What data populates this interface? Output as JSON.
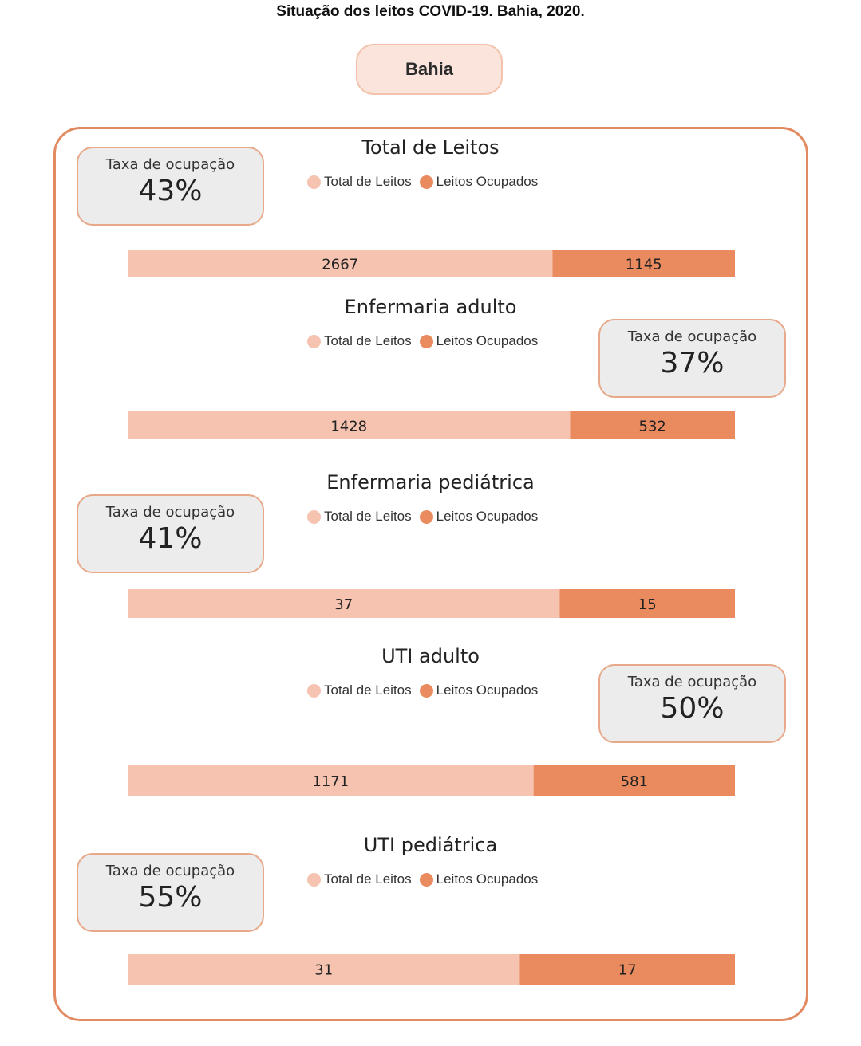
{
  "title": "Situação dos leitos COVID-19. Bahia, 2020.",
  "region_button": "Bahia",
  "colors": {
    "total": "#f5c3b0",
    "occupied": "#e98b5f",
    "accent": "#e28b62",
    "card_bg": "#ececec"
  },
  "legend": {
    "total_label": "Total de Leitos",
    "occupied_label": "Leitos Ocupados"
  },
  "rate_label": "Taxa de ocupação",
  "chart_data": [
    {
      "type": "bar",
      "title": "Total de Leitos",
      "orientation": "horizontal-stacked",
      "series": [
        {
          "name": "Total de Leitos",
          "values": [
            2667
          ]
        },
        {
          "name": "Leitos Ocupados",
          "values": [
            1145
          ]
        }
      ],
      "occupancy_rate": "43%",
      "card_side": "left"
    },
    {
      "type": "bar",
      "title": "Enfermaria adulto",
      "orientation": "horizontal-stacked",
      "series": [
        {
          "name": "Total de Leitos",
          "values": [
            1428
          ]
        },
        {
          "name": "Leitos Ocupados",
          "values": [
            532
          ]
        }
      ],
      "occupancy_rate": "37%",
      "card_side": "right"
    },
    {
      "type": "bar",
      "title": "Enfermaria pediátrica",
      "orientation": "horizontal-stacked",
      "series": [
        {
          "name": "Total de Leitos",
          "values": [
            37
          ]
        },
        {
          "name": "Leitos Ocupados",
          "values": [
            15
          ]
        }
      ],
      "occupancy_rate": "41%",
      "card_side": "left"
    },
    {
      "type": "bar",
      "title": "UTI adulto",
      "orientation": "horizontal-stacked",
      "series": [
        {
          "name": "Total de Leitos",
          "values": [
            1171
          ]
        },
        {
          "name": "Leitos Ocupados",
          "values": [
            581
          ]
        }
      ],
      "occupancy_rate": "50%",
      "card_side": "right"
    },
    {
      "type": "bar",
      "title": "UTI pediátrica",
      "orientation": "horizontal-stacked",
      "series": [
        {
          "name": "Total de Leitos",
          "values": [
            31
          ]
        },
        {
          "name": "Leitos Ocupados",
          "values": [
            17
          ]
        }
      ],
      "occupancy_rate": "55%",
      "card_side": "left"
    }
  ]
}
